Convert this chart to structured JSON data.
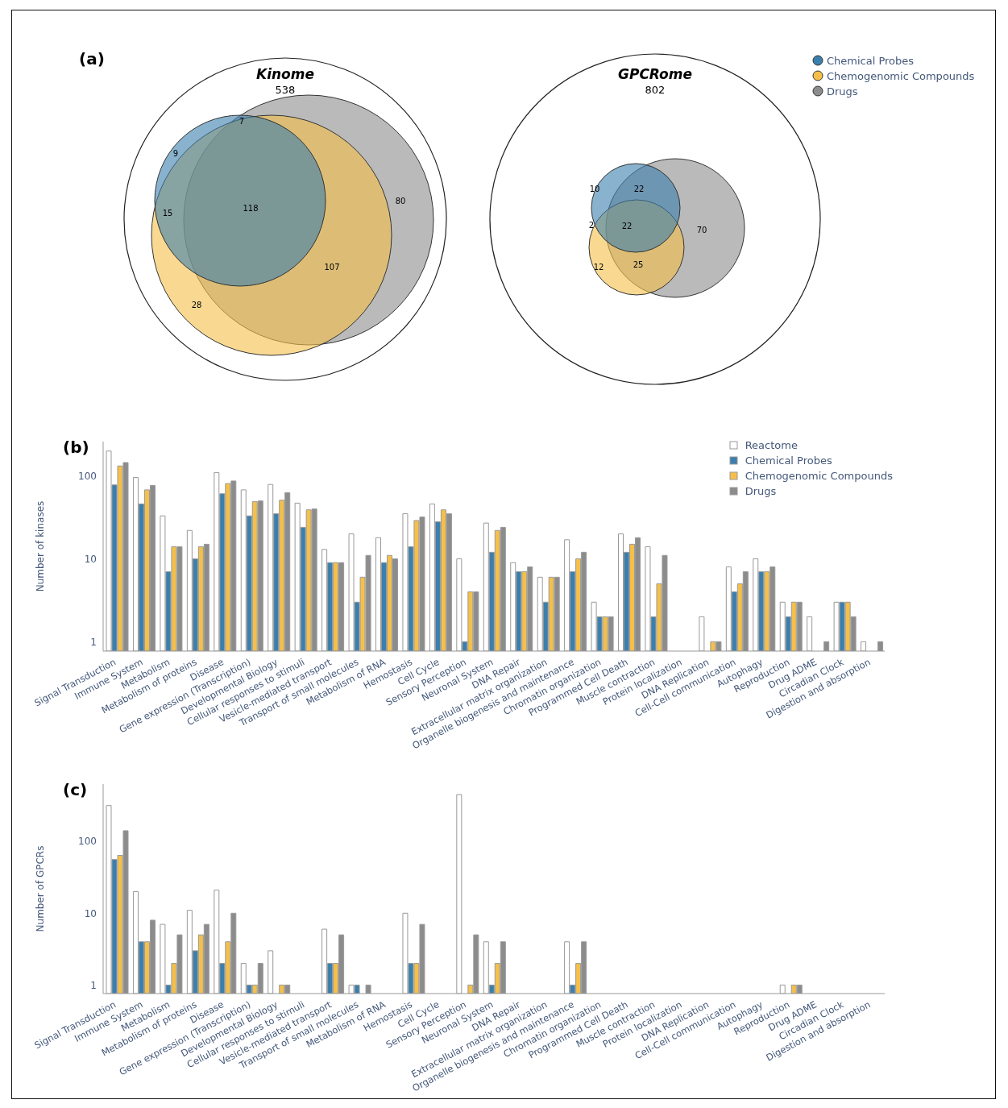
{
  "chart_data": [
    {
      "type": "other",
      "title": "Kinome",
      "subtitle": "538",
      "annotations": [
        "(a)",
        "9",
        "7",
        "15",
        "118",
        "107",
        "28",
        "80"
      ],
      "series": [
        {
          "color": "#3a7fad"
        },
        {
          "color": "#f5c04a"
        },
        {
          "color": "#8c8c8c"
        }
      ]
    },
    {
      "type": "other",
      "title": "GPCRome",
      "subtitle": "802",
      "annotations": [
        "10",
        "22",
        "2",
        "22",
        "70",
        "12",
        "25"
      ],
      "legend": "top right",
      "series": [
        {
          "name": "Chemical Probes",
          "color": "#3a7fad"
        },
        {
          "name": "Chemogenomic Compounds",
          "color": "#f5c04a"
        },
        {
          "name": "Drugs",
          "color": "#8c8c8c"
        }
      ]
    },
    {
      "type": "bar",
      "annotations": [
        "(b)"
      ],
      "ylabel": "Number of kinases",
      "log": "y",
      "ylim": [
        0.77,
        260
      ],
      "yticks": [
        1,
        10,
        100
      ],
      "legend": "top right",
      "categories": [
        "Signal Transduction",
        "Immune System",
        "Metabolism",
        "Metabolism of proteins",
        "Disease",
        "Gene expression (Transcription)",
        "Developmental Biology",
        "Cellular responses to stimuli",
        "Vesicle-mediated transport",
        "Transport of small molecules",
        "Metabolism of RNA",
        "Hemostasis",
        "Cell Cycle",
        "Sensory Perception",
        "Neuronal System",
        "DNA Repair",
        "Extracellular matrix organization",
        "Organelle biogenesis and maintenance",
        "Chromatin organization",
        "Programmed Cell Death",
        "Muscle contraction",
        "Protein localization",
        "DNA Replication",
        "Cell-Cell communication",
        "Autophagy",
        "Reproduction",
        "Drug ADME",
        "Circadian Clock",
        "Digestion and absorption"
      ],
      "series": [
        {
          "name": "Reactome",
          "color": "#ffffff",
          "values": [
            200,
            96,
            33,
            22,
            110,
            68,
            79,
            47,
            13,
            20,
            18,
            35,
            46,
            10,
            27,
            9,
            6,
            17,
            3,
            20,
            14,
            null,
            2,
            8,
            10,
            3,
            2,
            3,
            1
          ]
        },
        {
          "name": "Chemical Probes",
          "color": "#3a7fad",
          "values": [
            78,
            46,
            7,
            10,
            61,
            33,
            35,
            24,
            9,
            3,
            9,
            14,
            28,
            1,
            12,
            7,
            3,
            7,
            2,
            12,
            2,
            null,
            null,
            4,
            7,
            2,
            null,
            3,
            null
          ]
        },
        {
          "name": "Chemogenomic Compounds",
          "color": "#f5c04a",
          "values": [
            132,
            68,
            14,
            14,
            81,
            49,
            51,
            39,
            9,
            6,
            11,
            29,
            39,
            4,
            22,
            7,
            6,
            10,
            2,
            15,
            5,
            null,
            1,
            5,
            7,
            3,
            null,
            3,
            null
          ]
        },
        {
          "name": "Drugs",
          "color": "#8c8c8c",
          "values": [
            145,
            77,
            14,
            15,
            87,
            50,
            63,
            40,
            9,
            11,
            10,
            32,
            35,
            4,
            24,
            8,
            6,
            12,
            2,
            18,
            11,
            null,
            1,
            7,
            8,
            3,
            1,
            2,
            1
          ]
        }
      ]
    },
    {
      "type": "bar",
      "annotations": [
        "(c)"
      ],
      "ylabel": "Number of GPCRs",
      "log": "y",
      "ylim": [
        0.76,
        630
      ],
      "yticks": [
        1,
        10,
        100
      ],
      "categories": [
        "Signal Transduction",
        "Immune System",
        "Metabolism",
        "Metabolism of proteins",
        "Disease",
        "Gene expression (Transcription)",
        "Developmental Biology",
        "Cellular responses to stimuli",
        "Vesicle-mediated transport",
        "Transport of small molecules",
        "Metabolism of RNA",
        "Hemostasis",
        "Cell Cycle",
        "Sensory Perception",
        "Neuronal System",
        "DNA Repair",
        "Extracellular matrix organization",
        "Organelle biogenesis and maintenance",
        "Chromatin organization",
        "Programmed Cell Death",
        "Muscle contraction",
        "Protein localization",
        "DNA Replication",
        "Cell-Cell communication",
        "Autophagy",
        "Reproduction",
        "Drug ADME",
        "Circadian Clock",
        "Digestion and absorption"
      ],
      "series": [
        {
          "color": "#ffffff",
          "values": [
            316,
            20,
            7,
            11,
            21,
            2,
            3,
            null,
            6,
            1,
            null,
            10,
            null,
            450,
            4,
            null,
            null,
            4,
            null,
            null,
            null,
            null,
            null,
            null,
            null,
            1,
            null,
            null,
            null
          ]
        },
        {
          "color": "#3a7fad",
          "values": [
            56,
            4,
            1,
            3,
            2,
            1,
            null,
            null,
            2,
            1,
            null,
            2,
            null,
            null,
            1,
            null,
            null,
            1,
            null,
            null,
            null,
            null,
            null,
            null,
            null,
            null,
            null,
            null,
            null
          ]
        },
        {
          "color": "#f5c04a",
          "values": [
            64,
            4,
            2,
            5,
            4,
            1,
            1,
            null,
            2,
            null,
            null,
            2,
            null,
            1,
            2,
            null,
            null,
            2,
            null,
            null,
            null,
            null,
            null,
            null,
            null,
            1,
            null,
            null,
            null
          ]
        },
        {
          "color": "#8c8c8c",
          "values": [
            141,
            8,
            5,
            7,
            10,
            2,
            1,
            null,
            5,
            1,
            null,
            7,
            null,
            5,
            4,
            null,
            null,
            4,
            null,
            null,
            null,
            null,
            null,
            null,
            null,
            1,
            null,
            null,
            null
          ]
        }
      ]
    }
  ]
}
